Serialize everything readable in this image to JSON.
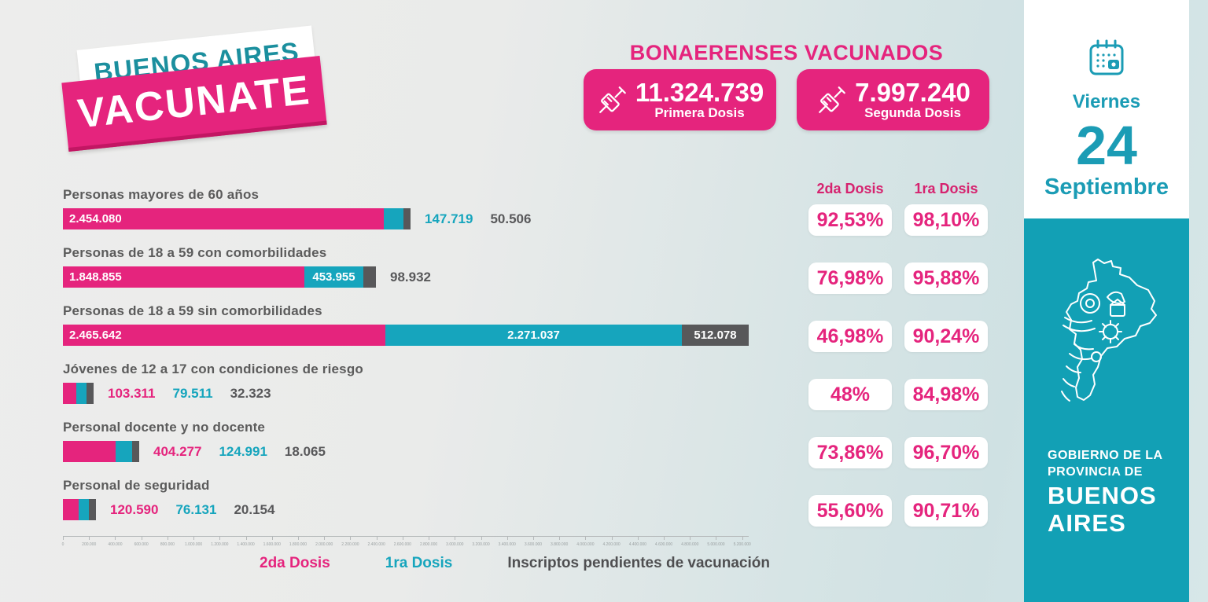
{
  "logo": {
    "line1": "BUENOS AIRES",
    "line2": "VACUNATE"
  },
  "header": {
    "title": "BONAERENSES VACUNADOS",
    "badges": [
      {
        "value": "11.324.739",
        "label": "Primera Dosis",
        "icon": "syringe-icon"
      },
      {
        "value": "7.997.240",
        "label": "Segunda Dosis",
        "icon": "syringe-icon"
      }
    ]
  },
  "date_card": {
    "weekday": "Viernes",
    "day": "24",
    "month": "Septiembre",
    "icon": "calendar-icon"
  },
  "gov_panel": {
    "line1": "GOBIERNO DE LA",
    "line2": "PROVINCIA DE",
    "line3": "BUENOS",
    "line4": "AIRES"
  },
  "percent_table": {
    "col1": "2da Dosis",
    "col2": "1ra Dosis"
  },
  "legend": {
    "dosis2": "2da Dosis",
    "dosis1": "1ra Dosis",
    "pendientes": "Inscriptos pendientes de vacunación"
  },
  "colors": {
    "pink": "#e5247d",
    "teal": "#16a5bd",
    "gray": "#58585a",
    "panel_teal": "#12a0b5",
    "date_teal": "#1b9cb5",
    "label_gray": "#5b5b5b"
  },
  "chart_data": {
    "type": "bar",
    "orientation": "horizontal",
    "stacked": true,
    "title": "",
    "xlabel": "",
    "ylabel": "",
    "axis": {
      "min": 0,
      "max": 5250000,
      "tick_step": 200000
    },
    "legend_position": "bottom",
    "series_names": [
      "2da Dosis",
      "1ra Dosis",
      "Inscriptos pendientes de vacunación"
    ],
    "rows": [
      {
        "category": "Personas mayores de 60 años",
        "dosis2": 2454080,
        "dosis1": 147719,
        "pendientes": 50506,
        "labels": {
          "dosis2": "2.454.080",
          "dosis1": "147.719",
          "pendientes": "50.506"
        },
        "inside": {
          "dosis2": true,
          "dosis1": false,
          "pendientes": false
        },
        "pct2": "92,53%",
        "pct1": "98,10%"
      },
      {
        "category": "Personas de 18 a 59 con comorbilidades",
        "dosis2": 1848855,
        "dosis1": 453955,
        "pendientes": 98932,
        "labels": {
          "dosis2": "1.848.855",
          "dosis1": "453.955",
          "pendientes": "98.932"
        },
        "inside": {
          "dosis2": true,
          "dosis1": true,
          "pendientes": false
        },
        "pct2": "76,98%",
        "pct1": "95,88%"
      },
      {
        "category": "Personas de 18 a 59 sin comorbilidades",
        "dosis2": 2465642,
        "dosis1": 2271037,
        "pendientes": 512078,
        "labels": {
          "dosis2": "2.465.642",
          "dosis1": "2.271.037",
          "pendientes": "512.078"
        },
        "inside": {
          "dosis2": true,
          "dosis1": true,
          "pendientes": true
        },
        "pct2": "46,98%",
        "pct1": "90,24%"
      },
      {
        "category": "Jóvenes de 12 a 17 con condiciones de riesgo",
        "dosis2": 103311,
        "dosis1": 79511,
        "pendientes": 32323,
        "labels": {
          "dosis2": "103.311",
          "dosis1": "79.511",
          "pendientes": "32.323"
        },
        "inside": {
          "dosis2": false,
          "dosis1": false,
          "pendientes": false
        },
        "pct2": "48%",
        "pct1": "84,98%"
      },
      {
        "category": "Personal docente y no docente",
        "dosis2": 404277,
        "dosis1": 124991,
        "pendientes": 18065,
        "labels": {
          "dosis2": "404.277",
          "dosis1": "124.991",
          "pendientes": "18.065"
        },
        "inside": {
          "dosis2": false,
          "dosis1": false,
          "pendientes": false
        },
        "pct2": "73,86%",
        "pct1": "96,70%"
      },
      {
        "category": "Personal de seguridad",
        "dosis2": 120590,
        "dosis1": 76131,
        "pendientes": 20154,
        "labels": {
          "dosis2": "120.590",
          "dosis1": "76.131",
          "pendientes": "20.154"
        },
        "inside": {
          "dosis2": false,
          "dosis1": false,
          "pendientes": false
        },
        "pct2": "55,60%",
        "pct1": "90,71%"
      }
    ]
  }
}
